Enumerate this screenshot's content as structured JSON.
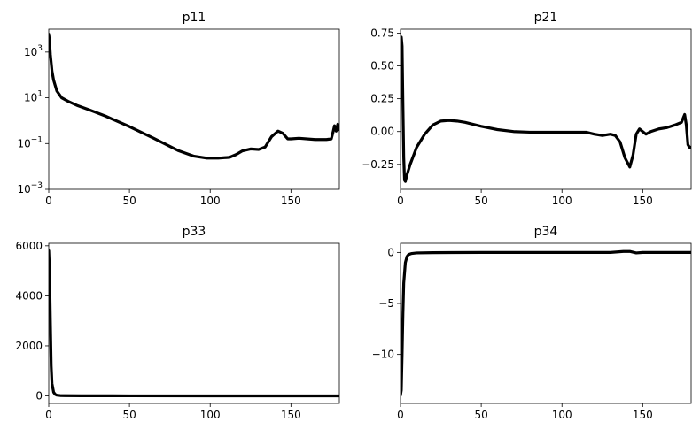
{
  "chart_data": [
    {
      "type": "line",
      "title": "p11",
      "yscale": "log",
      "xlim": [
        0,
        180
      ],
      "ylim": [
        0.001,
        10000
      ],
      "xticks": [
        0,
        50,
        100,
        150
      ],
      "yticks": [
        0.001,
        0.1,
        10,
        1000
      ],
      "ytick_base": "10",
      "ytick_exponents": [
        "−3",
        "−1",
        "1",
        "3"
      ],
      "line_color": "#000000",
      "series": [
        {
          "x": [
            0,
            0.5,
            1,
            2,
            3,
            5,
            8,
            12,
            18,
            25,
            35,
            50,
            65,
            80,
            90,
            98,
            105,
            112,
            116,
            120,
            125,
            130,
            134,
            138,
            142,
            145,
            148,
            150,
            155,
            165,
            172,
            175,
            176,
            177,
            178,
            179,
            180
          ],
          "y": [
            6000,
            3000,
            800,
            150,
            60,
            20,
            10,
            7,
            4.5,
            3,
            1.6,
            0.55,
            0.17,
            0.05,
            0.028,
            0.023,
            0.023,
            0.025,
            0.033,
            0.048,
            0.058,
            0.055,
            0.07,
            0.2,
            0.35,
            0.28,
            0.16,
            0.16,
            0.17,
            0.15,
            0.15,
            0.16,
            0.3,
            0.6,
            0.35,
            0.7,
            0.4
          ]
        }
      ]
    },
    {
      "type": "line",
      "title": "p21",
      "xlim": [
        0,
        180
      ],
      "ylim": [
        -0.44,
        0.78
      ],
      "xticks": [
        0,
        50,
        100,
        150
      ],
      "yticks": [
        -0.25,
        0.0,
        0.25,
        0.5,
        0.75
      ],
      "ytick_labels": [
        "−0.25",
        "0.00",
        "0.25",
        "0.50",
        "0.75"
      ],
      "line_color": "#000000",
      "series": [
        {
          "x": [
            0,
            0.5,
            1,
            1.5,
            2,
            2.5,
            3,
            4,
            6,
            10,
            15,
            20,
            25,
            30,
            35,
            40,
            50,
            60,
            70,
            80,
            90,
            100,
            110,
            115,
            120,
            125,
            130,
            133,
            136,
            139,
            142,
            144,
            146,
            148,
            150,
            152,
            155,
            160,
            165,
            170,
            174,
            176,
            177,
            178,
            179,
            180
          ],
          "y": [
            0.7,
            0.72,
            0.65,
            0.2,
            -0.2,
            -0.37,
            -0.38,
            -0.33,
            -0.25,
            -0.12,
            -0.02,
            0.05,
            0.08,
            0.085,
            0.08,
            0.07,
            0.04,
            0.015,
            0.0,
            -0.005,
            -0.005,
            -0.005,
            -0.005,
            -0.005,
            -0.02,
            -0.03,
            -0.02,
            -0.03,
            -0.08,
            -0.2,
            -0.27,
            -0.18,
            -0.02,
            0.02,
            0.0,
            -0.02,
            0.0,
            0.02,
            0.03,
            0.05,
            0.07,
            0.13,
            0.05,
            -0.1,
            -0.12,
            -0.12
          ]
        }
      ]
    },
    {
      "type": "line",
      "title": "p33",
      "xlim": [
        0,
        180
      ],
      "ylim": [
        -300,
        6100
      ],
      "xticks": [
        0,
        50,
        100,
        150
      ],
      "yticks": [
        0,
        2000,
        4000,
        6000
      ],
      "line_color": "#000000",
      "series": [
        {
          "x": [
            0,
            0.5,
            1,
            1.5,
            2,
            3,
            4,
            5,
            7,
            10,
            20,
            50,
            100,
            150,
            180
          ],
          "y": [
            5800,
            5000,
            3000,
            1200,
            500,
            150,
            60,
            30,
            15,
            10,
            6,
            3,
            1,
            1,
            1
          ]
        }
      ]
    },
    {
      "type": "line",
      "title": "p34",
      "xlim": [
        0,
        180
      ],
      "ylim": [
        -14.8,
        0.9
      ],
      "xticks": [
        0,
        50,
        100,
        150
      ],
      "yticks": [
        -10,
        -5,
        0
      ],
      "ytick_labels": [
        "−10",
        "−5",
        "0"
      ],
      "line_color": "#000000",
      "series": [
        {
          "x": [
            0,
            0.5,
            1,
            1.5,
            2,
            3,
            4,
            5,
            7,
            10,
            20,
            50,
            100,
            130,
            138,
            142,
            146,
            150,
            160,
            170,
            178,
            180
          ],
          "y": [
            -14,
            -13.5,
            -10,
            -6,
            -3,
            -1,
            -0.4,
            -0.2,
            -0.1,
            -0.05,
            -0.02,
            0.0,
            0.0,
            0.0,
            0.1,
            0.1,
            -0.05,
            0.0,
            0.0,
            0.0,
            0.0,
            0.0
          ]
        }
      ]
    }
  ]
}
